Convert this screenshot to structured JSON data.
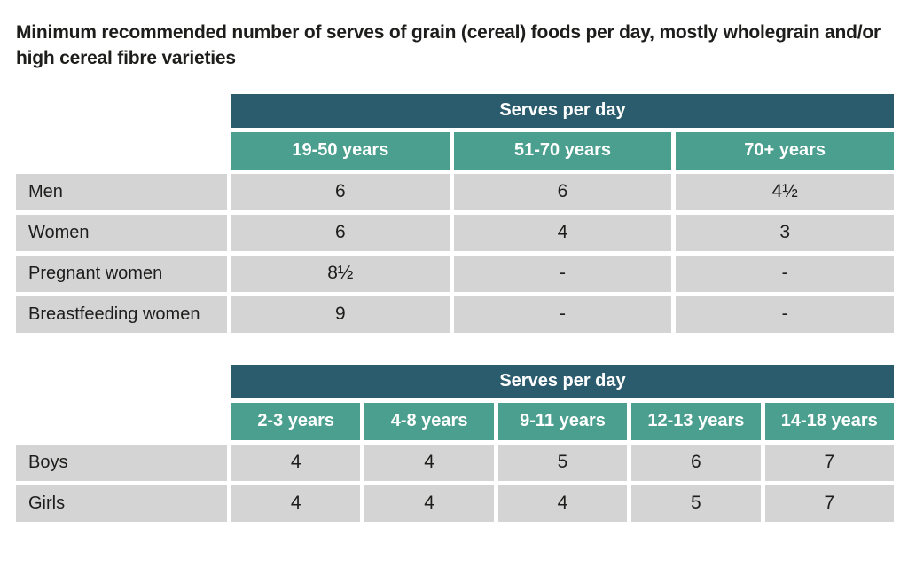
{
  "page": {
    "title": "Minimum recommended number of serves of grain (cereal) foods per day, mostly wholegrain and/or high cereal fibre varieties"
  },
  "colors": {
    "header_dark_teal": "#2b5c6d",
    "header_teal": "#4b9f8e",
    "row_gray": "#d4d4d5",
    "text_dark": "#1d1d1b",
    "header_text": "#ffffff"
  },
  "tables": [
    {
      "type": "table",
      "title": "Serves per day",
      "columns": [
        "19-50 years",
        "51-70 years",
        "70+ years"
      ],
      "rows": [
        {
          "label": "Men",
          "values": [
            "6",
            "6",
            "4½"
          ]
        },
        {
          "label": "Women",
          "values": [
            "6",
            "4",
            "3"
          ]
        },
        {
          "label": "Pregnant women",
          "values": [
            "8½",
            "-",
            "-"
          ]
        },
        {
          "label": "Breastfeeding women",
          "values": [
            "9",
            "-",
            "-"
          ]
        }
      ]
    },
    {
      "type": "table",
      "title": "Serves per day",
      "columns": [
        "2-3 years",
        "4-8 years",
        "9-11 years",
        "12-13 years",
        "14-18 years"
      ],
      "rows": [
        {
          "label": "Boys",
          "values": [
            "4",
            "4",
            "5",
            "6",
            "7"
          ]
        },
        {
          "label": "Girls",
          "values": [
            "4",
            "4",
            "4",
            "5",
            "7"
          ]
        }
      ]
    }
  ]
}
